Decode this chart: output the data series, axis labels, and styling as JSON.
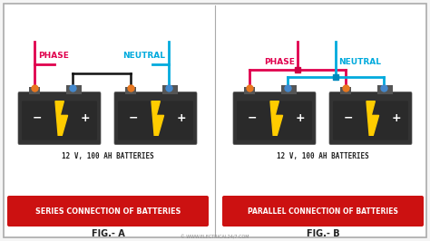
{
  "bg_color": "#f5f5f5",
  "panel_bg": "#ffffff",
  "divider_color": "#aaaaaa",
  "battery_color": "#333333",
  "battery_dark": "#222222",
  "phase_color": "#e0004d",
  "neutral_color": "#00aadd",
  "wire_black_color": "#111111",
  "connector_orange": "#e87820",
  "connector_blue": "#4488cc",
  "junction_phase": "#cc0044",
  "junction_neutral": "#0088bb",
  "red_box_color": "#cc1111",
  "text_white": "#ffffff",
  "text_dark": "#222222",
  "text_phase": "#e0004d",
  "text_neutral": "#00aadd",
  "text_gray": "#888888",
  "label_series": "SERIES CONNECTION OF BATTERIES",
  "label_parallel": "PARALLEL CONNECTION OF BATTERIES",
  "fig_a": "FIG.- A",
  "fig_b": "FIG.- B",
  "battery_label": "12 V, 100 AH BATTERIES",
  "phase_label": "PHASE",
  "neutral_label": "NEUTRAL",
  "watermark": "© WWW.ELECTRICAL24/7.COM",
  "lightning_color": "#ffcc00",
  "lightning_outline": "#cc8800"
}
